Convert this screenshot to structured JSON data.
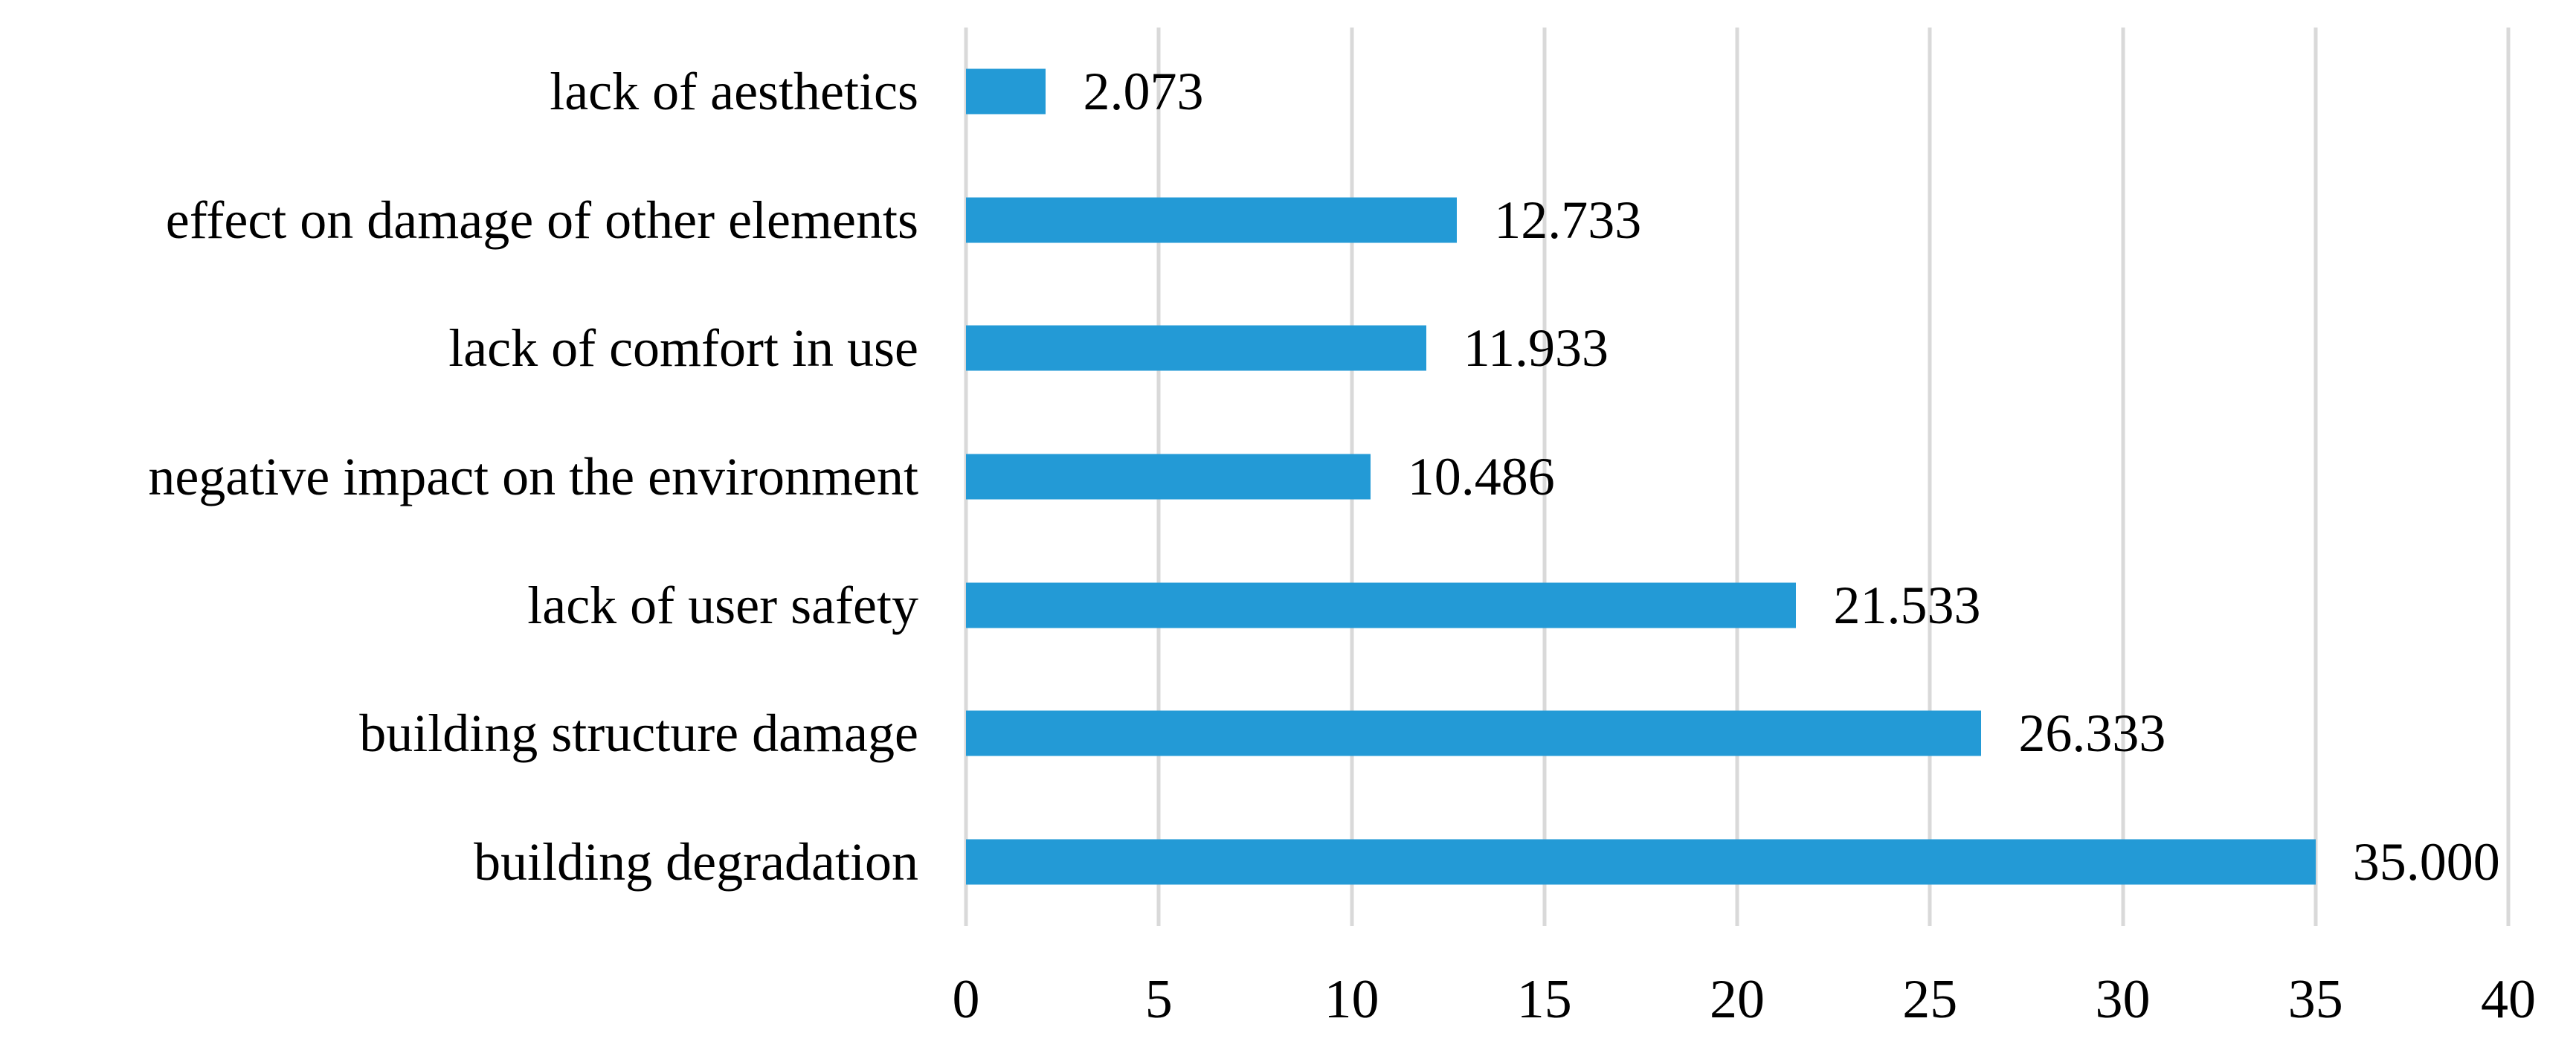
{
  "chart_data": {
    "type": "bar",
    "orientation": "horizontal",
    "title": "",
    "xlabel": "",
    "ylabel": "",
    "categories": [
      "lack of aesthetics",
      "effect on damage of other elements",
      "lack of comfort in use",
      "negative impact on the environment",
      "lack of user safety",
      "building structure damage",
      "building degradation"
    ],
    "values": [
      2.073,
      12.733,
      11.933,
      10.486,
      21.533,
      26.333,
      35.0
    ],
    "value_labels": [
      "2.073",
      "12.733",
      "11.933",
      "10.486",
      "21.533",
      "26.333",
      "35.000"
    ],
    "x_ticks": [
      0,
      5,
      10,
      15,
      20,
      25,
      30,
      35,
      40
    ],
    "x_tick_labels": [
      "0",
      "5",
      "10",
      "15",
      "20",
      "25",
      "30",
      "35",
      "40"
    ],
    "xlim": [
      0,
      40
    ],
    "grid": "vertical-gridlines-on",
    "legend": "none",
    "colors": {
      "bar": "#239AD6",
      "gridline": "#D9D9D9",
      "text": "#000000",
      "background": "#FFFFFF"
    }
  }
}
